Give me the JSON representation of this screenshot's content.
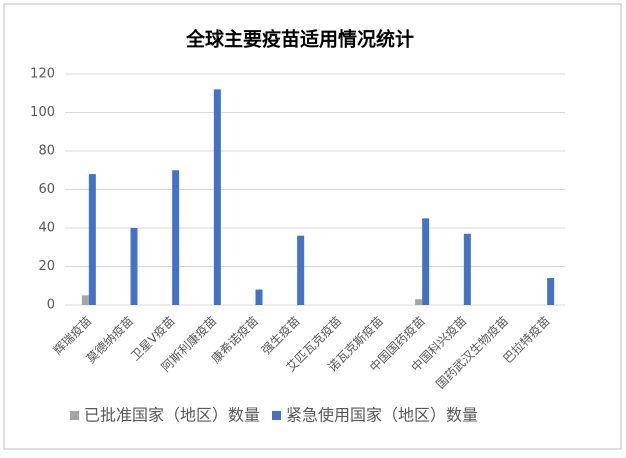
{
  "chart_data": {
    "type": "bar",
    "title": "全球主要疫苗适用情况统计",
    "categories": [
      "辉瑞疫苗",
      "莫德纳疫苗",
      "卫星V疫苗",
      "阿斯利康疫苗",
      "康希诺疫苗",
      "强生疫苗",
      "艾匹瓦克疫苗",
      "诺瓦克斯疫苗",
      "中国国药疫苗",
      "中国科兴疫苗",
      "国药武汉生物疫苗",
      "巴拉特疫苗"
    ],
    "series": [
      {
        "name": "已批准国家（地区）数量",
        "color": "#a5a5a5",
        "values": [
          5,
          null,
          null,
          null,
          null,
          null,
          null,
          null,
          3,
          null,
          null,
          null
        ]
      },
      {
        "name": "紧急使用国家（地区）数量",
        "color": "#4472c4",
        "values": [
          68,
          40,
          70,
          112,
          8,
          36,
          null,
          null,
          45,
          37,
          null,
          14
        ]
      }
    ],
    "ylim": [
      0,
      120
    ],
    "yticks": [
      0,
      20,
      40,
      60,
      80,
      100,
      120
    ],
    "grid": true,
    "legend": "bottom"
  }
}
